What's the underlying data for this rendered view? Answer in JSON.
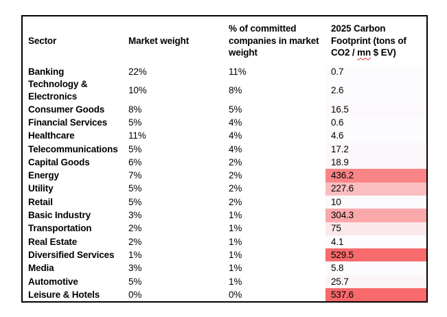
{
  "chart_data": {
    "type": "table",
    "columns": [
      "Sector",
      "Market weight",
      "% of committed companies in market weight",
      "2025 Carbon Footprint (tons of CO2 / mn $ EV)"
    ],
    "rows": [
      [
        "Banking",
        "22%",
        "11%",
        0.7
      ],
      [
        "Technology & Electronics",
        "10%",
        "8%",
        2.6
      ],
      [
        "Consumer Goods",
        "8%",
        "5%",
        16.5
      ],
      [
        "Financial Services",
        "5%",
        "4%",
        0.6
      ],
      [
        "Healthcare",
        "11%",
        "4%",
        4.6
      ],
      [
        "Telecommunications",
        "5%",
        "4%",
        17.2
      ],
      [
        "Capital Goods",
        "6%",
        "2%",
        18.9
      ],
      [
        "Energy",
        "7%",
        "2%",
        436.2
      ],
      [
        "Utility",
        "5%",
        "2%",
        227.6
      ],
      [
        "Retail",
        "5%",
        "2%",
        10
      ],
      [
        "Basic Industry",
        "3%",
        "1%",
        304.3
      ],
      [
        "Transportation",
        "2%",
        "1%",
        75
      ],
      [
        "Real Estate",
        "2%",
        "1%",
        4.1
      ],
      [
        "Diversified Services",
        "1%",
        "1%",
        529.5
      ],
      [
        "Media",
        "3%",
        "1%",
        5.8
      ],
      [
        "Automotive",
        "5%",
        "1%",
        25.7
      ],
      [
        "Leisure & Hotels",
        "0%",
        "0%",
        537.6
      ]
    ],
    "heat_scale": {
      "column": "2025 Carbon Footprint (tons of CO2 / mn $ EV)",
      "min_value": 0.6,
      "max_value": 537.6,
      "min_color": "#FCFCFF",
      "max_color": "#F8696B"
    },
    "layout_hints": {
      "gridlines": "none",
      "border": "outer-only-black",
      "heatmap_column_index": 3
    }
  },
  "footprint_header_parts": {
    "pre": "2025 Carbon Footprint (tons of CO2 / ",
    "misspelled": "mn",
    "post": " $ EV)"
  },
  "spellcheck_underline_color": "#e03030"
}
